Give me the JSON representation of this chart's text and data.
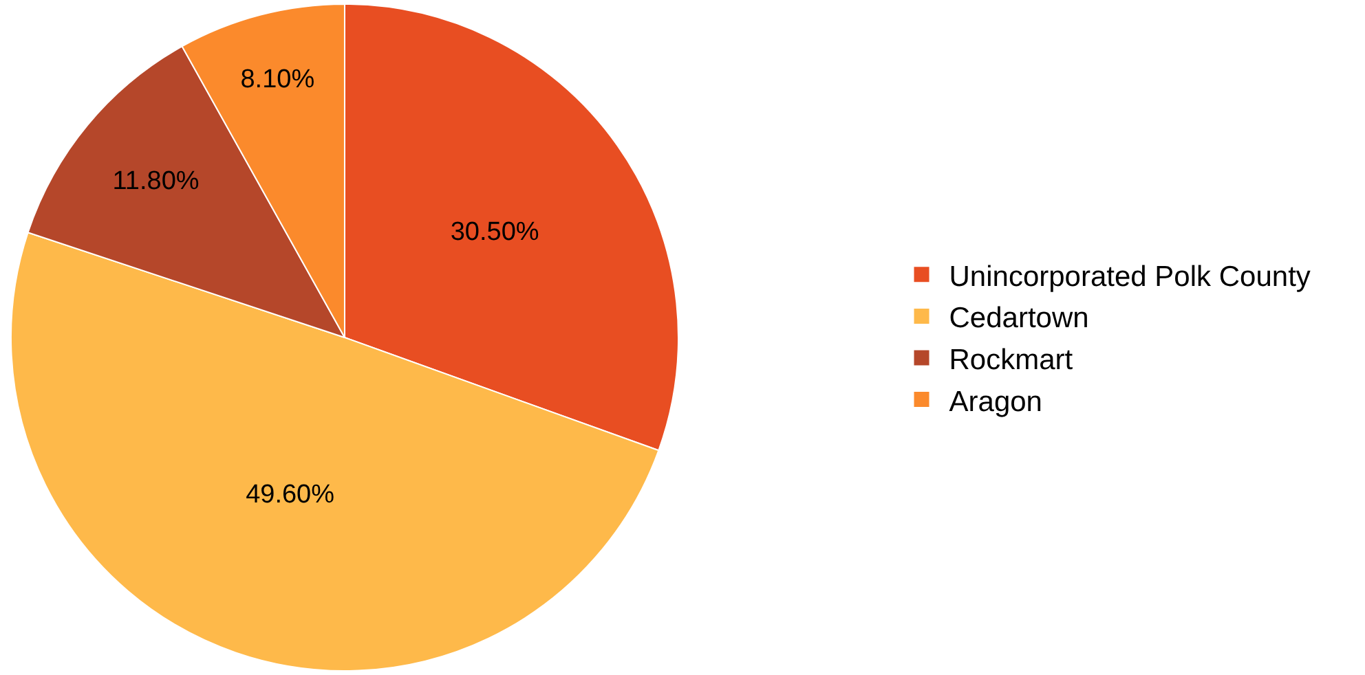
{
  "chart_data": {
    "type": "pie",
    "categories": [
      "Unincorporated Polk County",
      "Cedartown",
      "Rockmart",
      "Aragon"
    ],
    "values": [
      30.5,
      49.6,
      11.8,
      8.1
    ],
    "colors": [
      "#e84e22",
      "#feb94a",
      "#b5472a",
      "#fb8a2c"
    ],
    "value_labels": [
      "30.50%",
      "49.60%",
      "11.80%",
      "8.10%"
    ],
    "legend": "right"
  }
}
